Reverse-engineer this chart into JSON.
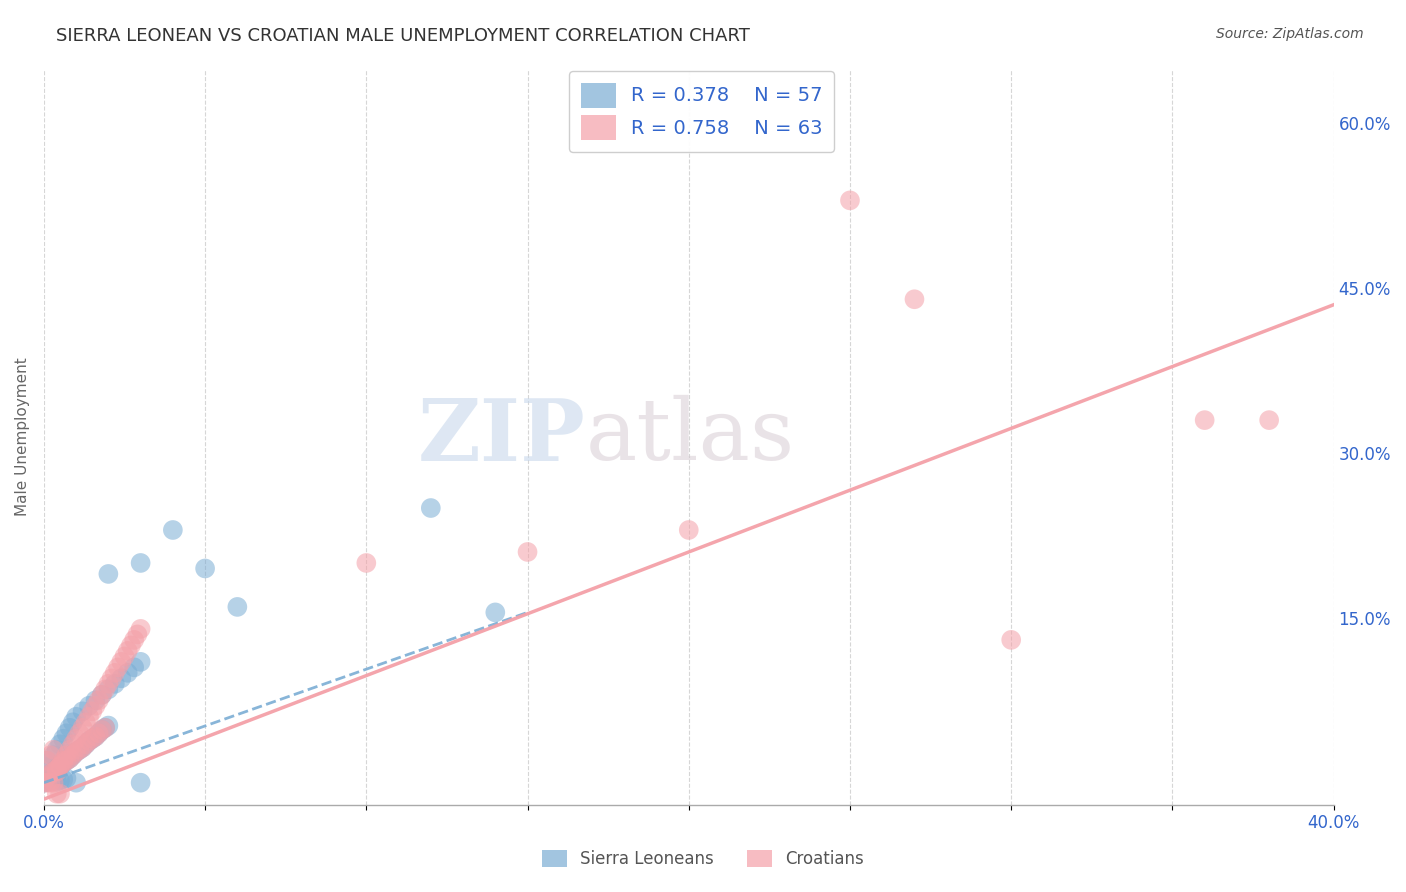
{
  "title": "SIERRA LEONEAN VS CROATIAN MALE UNEMPLOYMENT CORRELATION CHART",
  "source": "Source: ZipAtlas.com",
  "ylabel": "Male Unemployment",
  "xlim": [
    0.0,
    0.4
  ],
  "ylim": [
    -0.02,
    0.65
  ],
  "xticks": [
    0.0,
    0.05,
    0.1,
    0.15,
    0.2,
    0.25,
    0.3,
    0.35,
    0.4
  ],
  "xticklabels": [
    "0.0%",
    "",
    "",
    "",
    "",
    "",
    "",
    "",
    "40.0%"
  ],
  "yticks_right": [
    0.15,
    0.3,
    0.45,
    0.6
  ],
  "ytick_labels_right": [
    "15.0%",
    "30.0%",
    "45.0%",
    "60.0%"
  ],
  "sl_color": "#7BADD4",
  "cr_color": "#F4A0A8",
  "sl_R": 0.378,
  "sl_N": 57,
  "cr_R": 0.758,
  "cr_N": 63,
  "legend_text_color": "#3366CC",
  "background_color": "#FFFFFF",
  "grid_color": "#CCCCCC",
  "sl_trend": [
    0.0,
    0.0,
    0.15,
    0.155
  ],
  "cr_trend": [
    0.0,
    -0.015,
    0.4,
    0.435
  ],
  "sl_scatter": [
    [
      0.001,
      0.02
    ],
    [
      0.002,
      0.015
    ],
    [
      0.003,
      0.025
    ],
    [
      0.004,
      0.03
    ],
    [
      0.005,
      0.035
    ],
    [
      0.006,
      0.04
    ],
    [
      0.007,
      0.045
    ],
    [
      0.008,
      0.05
    ],
    [
      0.009,
      0.055
    ],
    [
      0.01,
      0.06
    ],
    [
      0.012,
      0.065
    ],
    [
      0.014,
      0.07
    ],
    [
      0.016,
      0.075
    ],
    [
      0.018,
      0.08
    ],
    [
      0.02,
      0.085
    ],
    [
      0.022,
      0.09
    ],
    [
      0.024,
      0.095
    ],
    [
      0.026,
      0.1
    ],
    [
      0.028,
      0.105
    ],
    [
      0.03,
      0.11
    ],
    [
      0.001,
      0.005
    ],
    [
      0.002,
      0.008
    ],
    [
      0.003,
      0.01
    ],
    [
      0.004,
      0.012
    ],
    [
      0.005,
      0.015
    ],
    [
      0.006,
      0.018
    ],
    [
      0.007,
      0.02
    ],
    [
      0.008,
      0.022
    ],
    [
      0.009,
      0.025
    ],
    [
      0.01,
      0.028
    ],
    [
      0.011,
      0.03
    ],
    [
      0.012,
      0.032
    ],
    [
      0.013,
      0.035
    ],
    [
      0.014,
      0.038
    ],
    [
      0.015,
      0.04
    ],
    [
      0.016,
      0.042
    ],
    [
      0.017,
      0.045
    ],
    [
      0.018,
      0.048
    ],
    [
      0.019,
      0.05
    ],
    [
      0.02,
      0.052
    ],
    [
      0.0,
      0.0
    ],
    [
      0.001,
      0.001
    ],
    [
      0.002,
      0.002
    ],
    [
      0.003,
      0.003
    ],
    [
      0.004,
      0.001
    ],
    [
      0.005,
      0.002
    ],
    [
      0.006,
      0.003
    ],
    [
      0.007,
      0.004
    ],
    [
      0.03,
      0.0
    ],
    [
      0.01,
      0.0
    ],
    [
      0.03,
      0.2
    ],
    [
      0.04,
      0.23
    ],
    [
      0.12,
      0.25
    ],
    [
      0.02,
      0.19
    ],
    [
      0.05,
      0.195
    ],
    [
      0.06,
      0.16
    ],
    [
      0.14,
      0.155
    ]
  ],
  "cr_scatter": [
    [
      0.001,
      0.02
    ],
    [
      0.002,
      0.025
    ],
    [
      0.003,
      0.03
    ],
    [
      0.004,
      0.01
    ],
    [
      0.005,
      0.015
    ],
    [
      0.006,
      0.02
    ],
    [
      0.007,
      0.025
    ],
    [
      0.008,
      0.03
    ],
    [
      0.009,
      0.035
    ],
    [
      0.01,
      0.04
    ],
    [
      0.011,
      0.045
    ],
    [
      0.012,
      0.05
    ],
    [
      0.013,
      0.055
    ],
    [
      0.014,
      0.06
    ],
    [
      0.015,
      0.065
    ],
    [
      0.016,
      0.07
    ],
    [
      0.017,
      0.075
    ],
    [
      0.018,
      0.08
    ],
    [
      0.019,
      0.085
    ],
    [
      0.02,
      0.09
    ],
    [
      0.021,
      0.095
    ],
    [
      0.022,
      0.1
    ],
    [
      0.023,
      0.105
    ],
    [
      0.024,
      0.11
    ],
    [
      0.025,
      0.115
    ],
    [
      0.026,
      0.12
    ],
    [
      0.027,
      0.125
    ],
    [
      0.028,
      0.13
    ],
    [
      0.029,
      0.135
    ],
    [
      0.03,
      0.14
    ],
    [
      0.001,
      0.005
    ],
    [
      0.002,
      0.008
    ],
    [
      0.003,
      0.01
    ],
    [
      0.004,
      0.012
    ],
    [
      0.005,
      0.015
    ],
    [
      0.006,
      0.018
    ],
    [
      0.007,
      0.02
    ],
    [
      0.008,
      0.022
    ],
    [
      0.009,
      0.025
    ],
    [
      0.01,
      0.028
    ],
    [
      0.011,
      0.03
    ],
    [
      0.012,
      0.032
    ],
    [
      0.013,
      0.035
    ],
    [
      0.014,
      0.038
    ],
    [
      0.015,
      0.04
    ],
    [
      0.016,
      0.042
    ],
    [
      0.017,
      0.045
    ],
    [
      0.018,
      0.048
    ],
    [
      0.019,
      0.05
    ],
    [
      0.0,
      0.0
    ],
    [
      0.001,
      0.0
    ],
    [
      0.002,
      0.0
    ],
    [
      0.003,
      0.0
    ],
    [
      0.004,
      -0.01
    ],
    [
      0.005,
      -0.01
    ],
    [
      0.25,
      0.53
    ],
    [
      0.27,
      0.44
    ],
    [
      0.38,
      0.33
    ],
    [
      0.1,
      0.2
    ],
    [
      0.15,
      0.21
    ],
    [
      0.2,
      0.23
    ],
    [
      0.36,
      0.33
    ],
    [
      0.3,
      0.13
    ]
  ]
}
